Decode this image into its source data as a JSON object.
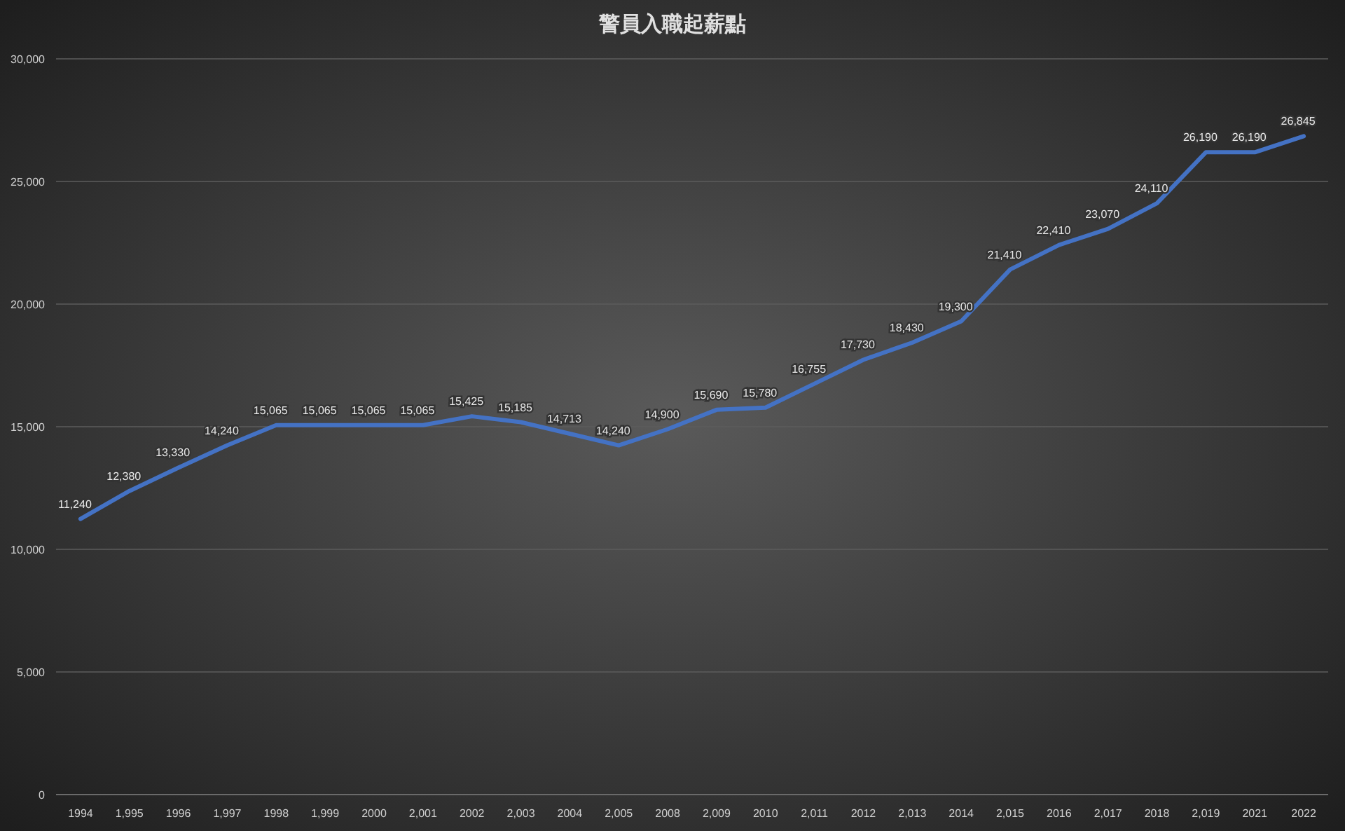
{
  "chart_data": {
    "type": "line",
    "title": "警員入職起薪點",
    "categories": [
      "1994",
      "1,995",
      "1996",
      "1,997",
      "1998",
      "1,999",
      "2000",
      "2,001",
      "2002",
      "2,003",
      "2004",
      "2,005",
      "2008",
      "2,009",
      "2010",
      "2,011",
      "2012",
      "2,013",
      "2014",
      "2,015",
      "2016",
      "2,017",
      "2018",
      "2,019",
      "2021",
      "2022"
    ],
    "series": [
      {
        "color": "#4472c4",
        "values": [
          11240,
          12380,
          13330,
          14240,
          15065,
          15065,
          15065,
          15065,
          15425,
          15185,
          14713,
          14240,
          14900,
          15690,
          15780,
          16755,
          17730,
          18430,
          19300,
          21410,
          22410,
          23070,
          24110,
          26190,
          26190,
          26845
        ],
        "value_labels": [
          "11,240",
          "12,380",
          "13,330",
          "14,240",
          "15,065",
          "15,065",
          "15,065",
          "15,065",
          "15,425",
          "15,185",
          "14,713",
          "14,240",
          "14,900",
          "15,690",
          "15,780",
          "16,755",
          "17,730",
          "18,430",
          "19,300",
          "21,410",
          "22,410",
          "23,070",
          "24,110",
          "26,190",
          "26,190",
          "26,845"
        ]
      }
    ],
    "ylim": [
      0,
      30000
    ],
    "yticks": [
      {
        "value": 0,
        "label": "0"
      },
      {
        "value": 5000,
        "label": "5,000"
      },
      {
        "value": 10000,
        "label": "10,000"
      },
      {
        "value": 15000,
        "label": "15,000"
      },
      {
        "value": 20000,
        "label": "20,000"
      },
      {
        "value": 25000,
        "label": "25,000"
      },
      {
        "value": 30000,
        "label": "30,000"
      }
    ],
    "grid": "y",
    "marker": "none",
    "line_style": "solid"
  }
}
